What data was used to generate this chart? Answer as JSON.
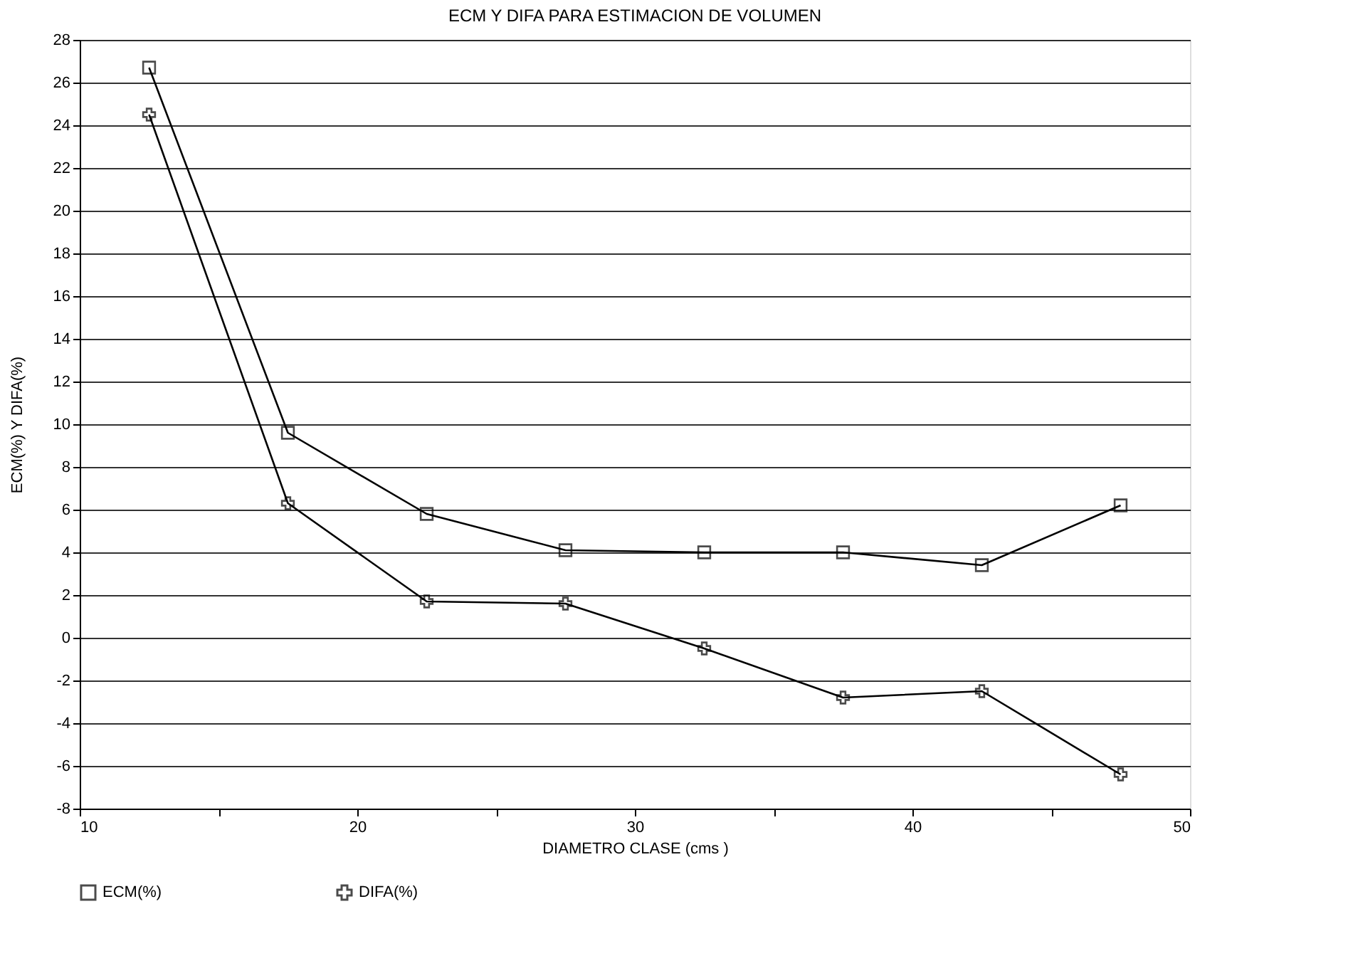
{
  "chart_data": {
    "type": "line",
    "title": "ECM Y DIFA PARA ESTIMACION DE VOLUMEN",
    "xlabel": "DIAMETRO CLASE (cms )",
    "ylabel": "ECM(%) Y DIFA(%)",
    "x": [
      12.5,
      17.5,
      22.5,
      27.5,
      32.5,
      37.5,
      42.5,
      47.5
    ],
    "series": [
      {
        "name": "ECM(%)",
        "color": "#000000",
        "marker": "square",
        "values": [
          26.7,
          9.6,
          5.8,
          4.1,
          4.0,
          4.0,
          3.4,
          6.2
        ]
      },
      {
        "name": "DIFA(%)",
        "color": "#000000",
        "marker": "cross",
        "values": [
          24.5,
          6.3,
          1.7,
          1.6,
          -0.5,
          -2.8,
          -2.5,
          -6.4
        ]
      }
    ],
    "xlim": [
      10,
      50
    ],
    "xticks": [
      10,
      {
        "value": 15,
        "label": null
      },
      20,
      {
        "value": 25,
        "label": null
      },
      30,
      {
        "value": 35,
        "label": null
      },
      40,
      {
        "value": 45,
        "label": null
      },
      50
    ],
    "ylim": [
      -8,
      28
    ],
    "yticks": [
      -8,
      -6,
      -4,
      -2,
      0,
      2,
      4,
      6,
      8,
      10,
      12,
      14,
      16,
      18,
      20,
      22,
      24,
      26,
      28
    ],
    "grid": "y",
    "legend": "bottom",
    "line_style": "solid"
  }
}
